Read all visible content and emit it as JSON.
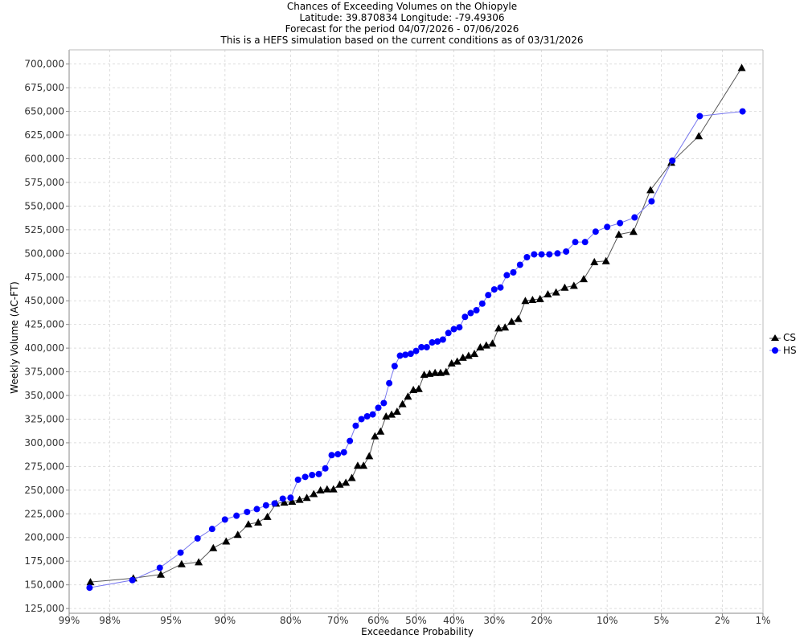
{
  "chart_data": {
    "type": "scatter",
    "title": "Chances of Exceeding Volumes on the Ohiopyle",
    "subtitles": [
      "Latitude: 39.870834 Longitude: -79.49306",
      "Forecast for the period 04/07/2026 - 07/06/2026",
      "This is a HEFS simulation based on the current conditions as of 03/31/2026"
    ],
    "xlabel": "Exceedance Probability",
    "ylabel": "Weekly Volume (AC-FT)",
    "x_scale": "normal-probability",
    "x_ticks": [
      99,
      98,
      95,
      90,
      80,
      70,
      60,
      50,
      40,
      30,
      20,
      10,
      5,
      2,
      1
    ],
    "x_tick_labels": [
      "99%",
      "98%",
      "95%",
      "90%",
      "80%",
      "70%",
      "60%",
      "50%",
      "40%",
      "30%",
      "20%",
      "10%",
      "5%",
      "2%",
      "1%"
    ],
    "xlim": [
      99,
      1
    ],
    "ylim": [
      120000,
      715000
    ],
    "y_ticks": [
      125000,
      150000,
      175000,
      200000,
      225000,
      250000,
      275000,
      300000,
      325000,
      350000,
      375000,
      400000,
      425000,
      450000,
      475000,
      500000,
      525000,
      550000,
      575000,
      600000,
      625000,
      650000,
      675000,
      700000
    ],
    "y_tick_labels": [
      "125,000",
      "150,000",
      "175,000",
      "200,000",
      "225,000",
      "250,000",
      "275,000",
      "300,000",
      "325,000",
      "350,000",
      "375,000",
      "400,000",
      "425,000",
      "450,000",
      "475,000",
      "500,000",
      "525,000",
      "550,000",
      "575,000",
      "600,000",
      "625,000",
      "650,000",
      "675,000",
      "700,000"
    ],
    "grid": true,
    "legend_position": "right",
    "series": [
      {
        "name": "CS",
        "color": "#000000",
        "line_color": "#555555",
        "marker": "triangle",
        "values_desc": [
          696000,
          624000,
          596000,
          567000,
          523000,
          520000,
          492000,
          491000,
          473000,
          466000,
          464000,
          459000,
          457000,
          452000,
          451000,
          450000,
          431000,
          428000,
          422000,
          421000,
          405000,
          403000,
          401000,
          394000,
          392000,
          390000,
          386000,
          384000,
          375000,
          374000,
          374000,
          373000,
          372000,
          357000,
          356000,
          349000,
          341000,
          333000,
          330000,
          328000,
          312000,
          307000,
          286000,
          276000,
          276000,
          263000,
          258000,
          256000,
          251000,
          251000,
          250000,
          246000,
          242000,
          240000,
          238000,
          237000,
          236000,
          222000,
          216000,
          214000,
          203000,
          196000,
          189000,
          174000,
          172000,
          161000,
          157000,
          153000
        ]
      },
      {
        "name": "HS",
        "color": "#0000ff",
        "line_color": "#7777ee",
        "marker": "circle",
        "values_desc": [
          650000,
          645000,
          598000,
          555000,
          538000,
          532000,
          528000,
          523000,
          512000,
          512000,
          502000,
          500000,
          499000,
          499000,
          499000,
          496000,
          488000,
          480000,
          477000,
          464000,
          462000,
          456000,
          447000,
          440000,
          437000,
          433000,
          422000,
          420000,
          416000,
          409000,
          407000,
          406000,
          401000,
          401000,
          397000,
          394000,
          393000,
          392000,
          381000,
          363000,
          342000,
          337000,
          330000,
          328000,
          325000,
          318000,
          302000,
          290000,
          288000,
          287000,
          273000,
          267000,
          266000,
          264000,
          261000,
          242000,
          241000,
          236000,
          234000,
          230000,
          227000,
          223000,
          219000,
          209000,
          199000,
          184000,
          168000,
          155000,
          147000
        ]
      }
    ]
  }
}
